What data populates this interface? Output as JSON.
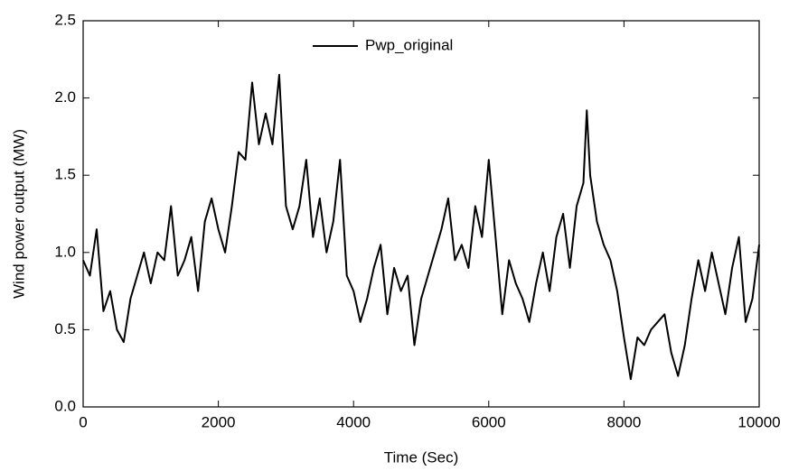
{
  "chart_data": {
    "type": "line",
    "x_label": "Time (Sec)",
    "y_label": "Wind power output (MW)",
    "x": [
      0,
      100,
      200,
      300,
      400,
      500,
      600,
      700,
      800,
      900,
      1000,
      1100,
      1200,
      1300,
      1400,
      1500,
      1600,
      1700,
      1800,
      1900,
      2000,
      2100,
      2200,
      2300,
      2400,
      2500,
      2600,
      2700,
      2800,
      2900,
      3000,
      3100,
      3200,
      3300,
      3400,
      3500,
      3600,
      3700,
      3800,
      3900,
      4000,
      4100,
      4200,
      4300,
      4400,
      4500,
      4600,
      4700,
      4800,
      4900,
      5000,
      5100,
      5200,
      5300,
      5400,
      5500,
      5600,
      5700,
      5800,
      5900,
      6000,
      6100,
      6200,
      6300,
      6400,
      6500,
      6600,
      6700,
      6800,
      6900,
      7000,
      7100,
      7200,
      7300,
      7400,
      7450,
      7500,
      7600,
      7700,
      7800,
      7900,
      8000,
      8100,
      8200,
      8300,
      8400,
      8500,
      8600,
      8700,
      8800,
      8900,
      9000,
      9100,
      9200,
      9300,
      9400,
      9500,
      9600,
      9700,
      9800,
      9900,
      10000
    ],
    "series": [
      {
        "name": "Pwp_original",
        "color": "#000000",
        "values": [
          0.95,
          0.85,
          1.15,
          0.62,
          0.75,
          0.5,
          0.42,
          0.7,
          0.85,
          1.0,
          0.8,
          1.0,
          0.95,
          1.3,
          0.85,
          0.95,
          1.1,
          0.75,
          1.2,
          1.35,
          1.15,
          1.0,
          1.3,
          1.65,
          1.6,
          2.1,
          1.7,
          1.9,
          1.7,
          2.15,
          1.3,
          1.15,
          1.3,
          1.6,
          1.1,
          1.35,
          1.0,
          1.2,
          1.6,
          0.85,
          0.75,
          0.55,
          0.7,
          0.9,
          1.05,
          0.6,
          0.9,
          0.75,
          0.85,
          0.4,
          0.7,
          0.85,
          1.0,
          1.15,
          1.35,
          0.95,
          1.05,
          0.9,
          1.3,
          1.1,
          1.6,
          1.1,
          0.6,
          0.95,
          0.8,
          0.7,
          0.55,
          0.8,
          1.0,
          0.75,
          1.1,
          1.25,
          0.9,
          1.3,
          1.45,
          1.92,
          1.5,
          1.2,
          1.05,
          0.95,
          0.75,
          0.45,
          0.18,
          0.45,
          0.4,
          0.5,
          0.55,
          0.6,
          0.35,
          0.2,
          0.4,
          0.7,
          0.95,
          0.75,
          1.0,
          0.8,
          0.6,
          0.9,
          1.1,
          0.55,
          0.7,
          1.05
        ]
      }
    ],
    "xlim": [
      0,
      10000
    ],
    "xticks": [
      0,
      2000,
      4000,
      6000,
      8000,
      10000
    ],
    "ylim": [
      0,
      2.5
    ],
    "yticks": [
      {
        "value": 0,
        "label": "0.0"
      },
      0.5,
      {
        "value": 1,
        "label": "1.0"
      },
      1.5,
      {
        "value": 2,
        "label": "2.0"
      },
      2.5
    ],
    "legend": "top-center"
  }
}
